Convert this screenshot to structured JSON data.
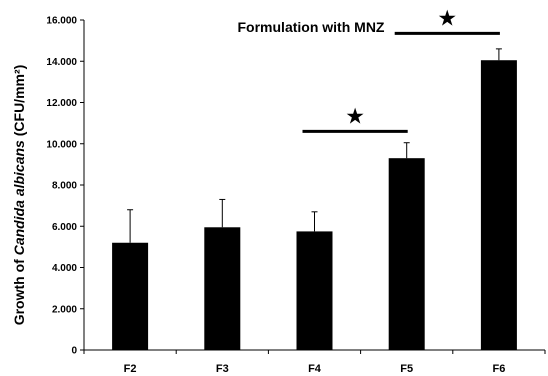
{
  "chart_data": {
    "type": "bar",
    "title": "Formulation with MNZ",
    "ylabel_prefix": "Growth of ",
    "ylabel_italic": "Candida albicans",
    "ylabel_suffix": " (CFU/mm²)",
    "xlabel": "",
    "categories": [
      "F2",
      "F3",
      "F4",
      "F5",
      "F6"
    ],
    "values": [
      5.2,
      5.95,
      5.75,
      9.3,
      14.05
    ],
    "error_upper": [
      1.6,
      1.35,
      0.95,
      0.75,
      0.55
    ],
    "ylim": [
      0,
      16
    ],
    "y_ticks": [
      0,
      2,
      4,
      6,
      8,
      10,
      12,
      14,
      16
    ],
    "y_tick_labels": [
      "0",
      "2.000",
      "4.000",
      "6.000",
      "8.000",
      "10.000",
      "12.000",
      "14.000",
      "16.000"
    ],
    "bar_color": "#000000",
    "grid": false,
    "legend": "none",
    "annotations": [
      {
        "symbol": "★",
        "from_category": "F4",
        "to_category": "F5",
        "line_y": 10.6
      },
      {
        "symbol": "★",
        "from_category": "F5",
        "to_category": "F6",
        "line_y": 15.35
      }
    ]
  }
}
